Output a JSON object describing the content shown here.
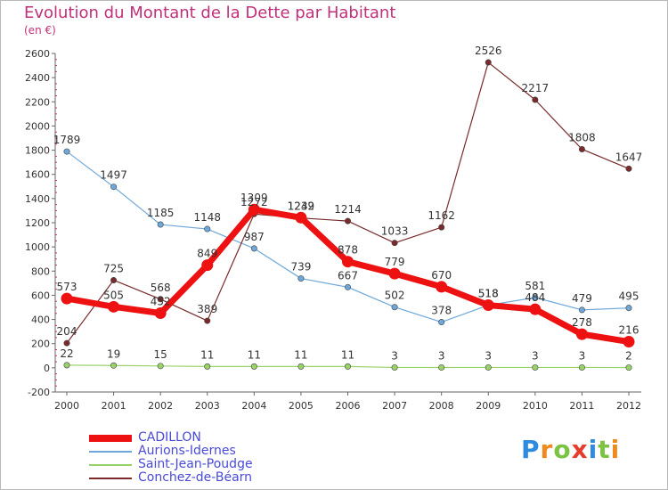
{
  "header": {
    "title": "Evolution du Montant de la Dette par Habitant",
    "subtitle": "(en €)"
  },
  "brand": {
    "letters": [
      {
        "ch": "P",
        "color": "#2e8be0"
      },
      {
        "ch": "r",
        "color": "#ef8a1f"
      },
      {
        "ch": "o",
        "color": "#7cc243"
      },
      {
        "ch": "x",
        "color": "#e63c2c"
      },
      {
        "ch": "i",
        "color": "#2e8be0"
      },
      {
        "ch": "t",
        "color": "#7cc243"
      },
      {
        "ch": "i",
        "color": "#ef8a1f"
      }
    ]
  },
  "chart_data": {
    "type": "line",
    "x": [
      "2000",
      "2001",
      "2002",
      "2003",
      "2004",
      "2005",
      "2006",
      "2007",
      "2008",
      "2009",
      "2010",
      "2011",
      "2012"
    ],
    "ylim": [
      -200,
      2600
    ],
    "yticks": [
      -200,
      0,
      200,
      400,
      600,
      800,
      1000,
      1200,
      1400,
      1600,
      1800,
      2000,
      2200,
      2400,
      2600
    ],
    "grid": false,
    "legend_position": "bottom-left",
    "series": [
      {
        "name": "CADILLON",
        "color": "#ee1111",
        "values": [
          573,
          505,
          452,
          849,
          1309,
          1242,
          878,
          779,
          670,
          518,
          484,
          278,
          216
        ]
      },
      {
        "name": "Aurions-Idernes",
        "color": "#6ea7d9",
        "values": [
          1789,
          1497,
          1185,
          1148,
          987,
          739,
          667,
          502,
          378,
          518,
          581,
          479,
          495
        ]
      },
      {
        "name": "Saint-Jean-Poudge",
        "color": "#9ad26a",
        "values": [
          22,
          19,
          15,
          11,
          11,
          11,
          11,
          3,
          3,
          3,
          3,
          3,
          2
        ]
      },
      {
        "name": "Conchez-de-Béarn",
        "color": "#7a2a2a",
        "values": [
          204,
          725,
          568,
          389,
          1272,
          1239,
          1214,
          1033,
          1162,
          2526,
          2217,
          1808,
          1647
        ]
      }
    ]
  }
}
